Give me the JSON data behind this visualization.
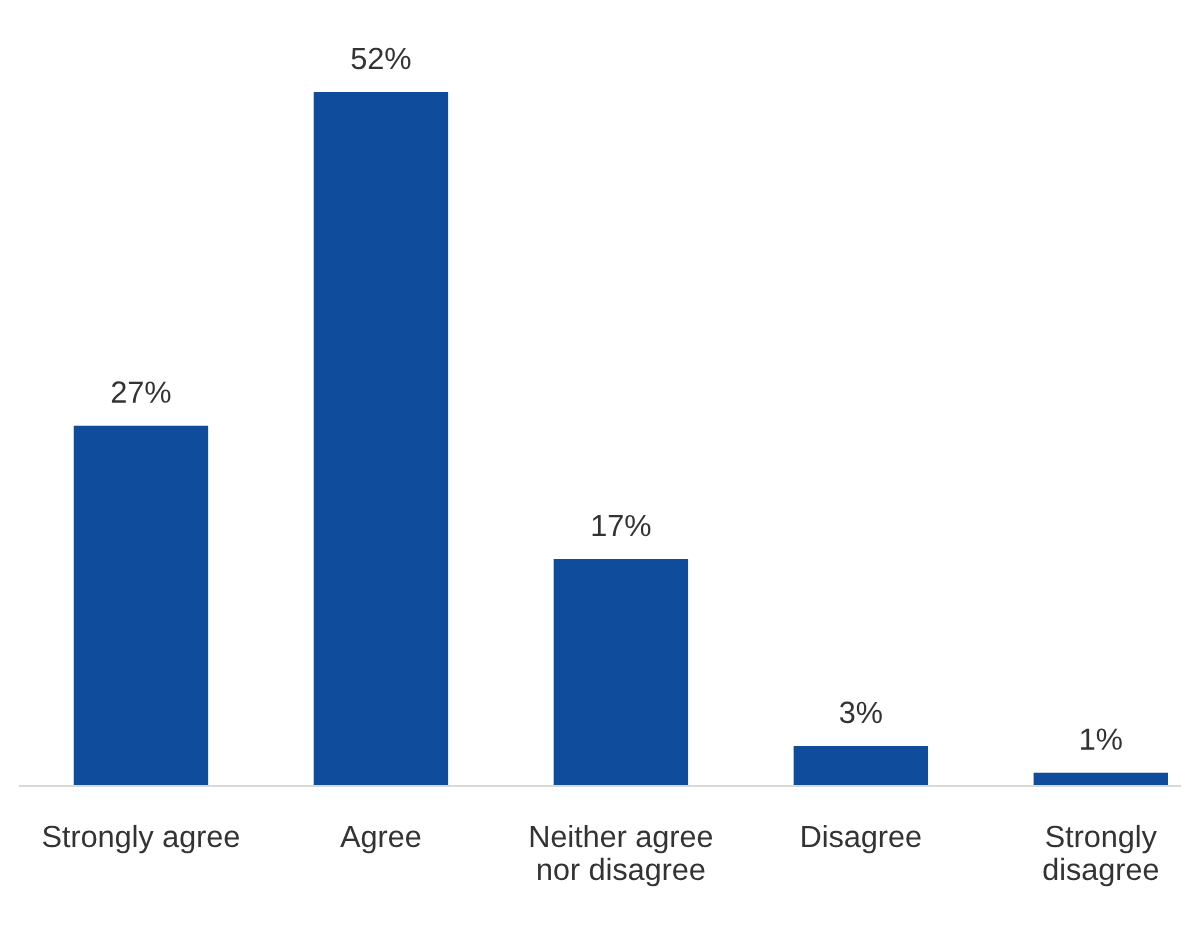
{
  "chart_data": {
    "type": "bar",
    "categories": [
      "Strongly agree",
      "Agree",
      "Neither agree\nnor disagree",
      "Disagree",
      "Strongly\ndisagree"
    ],
    "values": [
      27,
      52,
      17,
      3,
      1
    ],
    "value_labels": [
      "27%",
      "52%",
      "17%",
      "3%",
      "1%"
    ],
    "color": "#0f4c9c",
    "grid": false,
    "legend": false
  }
}
